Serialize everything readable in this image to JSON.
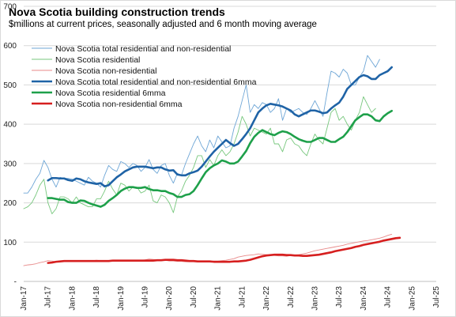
{
  "chart_data": {
    "type": "line",
    "title": "Nova Scotia building construction trends",
    "subtitle": "$millions at current prices, seasonally adjusted and 6 month moving average",
    "ylim": [
      0,
      700
    ],
    "yticks": [
      "-",
      "100",
      "200",
      "300",
      "400",
      "500",
      "600",
      "700"
    ],
    "xticks": [
      "Jan-17",
      "Jul-17",
      "Jan-18",
      "Jul-18",
      "Jan-19",
      "Jul-19",
      "Jan-20",
      "Jul-20",
      "Jan-21",
      "Jul-21",
      "Jan-22",
      "Jul-22",
      "Jan-23",
      "Jul-23",
      "Jan-24",
      "Jul-24",
      "Jan-25",
      "Jul-25"
    ],
    "x_start": "Jan-17",
    "x_end": "Jul-25",
    "legend_position": "top-left",
    "series": [
      {
        "name": "Nova Scotia total residential and non-residential",
        "color": "#6ea6d6",
        "width": 0.9,
        "start": "Jan-17",
        "values": [
          225,
          225,
          240,
          260,
          275,
          308,
          290,
          260,
          240,
          265,
          262,
          262,
          260,
          255,
          250,
          245,
          265,
          255,
          250,
          240,
          270,
          295,
          285,
          280,
          305,
          300,
          290,
          300,
          295,
          280,
          290,
          310,
          285,
          275,
          295,
          300,
          270,
          250,
          275,
          270,
          300,
          325,
          350,
          370,
          345,
          330,
          360,
          340,
          370,
          355,
          340,
          345,
          390,
          420,
          460,
          500,
          430,
          450,
          440,
          455,
          450,
          430,
          440,
          465,
          410,
          440,
          430,
          435,
          440,
          430,
          425,
          440,
          460,
          440,
          420,
          480,
          535,
          530,
          520,
          540,
          530,
          500,
          500,
          520,
          535,
          575,
          560,
          545,
          565
        ]
      },
      {
        "name": "Nova Scotia residential",
        "color": "#77c77d",
        "width": 0.9,
        "start": "Jan-17",
        "values": [
          185,
          190,
          200,
          220,
          245,
          260,
          200,
          172,
          185,
          215,
          215,
          210,
          200,
          215,
          200,
          195,
          190,
          190,
          210,
          210,
          230,
          255,
          235,
          220,
          250,
          245,
          230,
          240,
          240,
          225,
          230,
          245,
          205,
          200,
          220,
          215,
          200,
          175,
          215,
          230,
          255,
          270,
          290,
          320,
          320,
          290,
          310,
          295,
          320,
          335,
          320,
          330,
          350,
          380,
          420,
          400,
          370,
          390,
          385,
          380,
          375,
          390,
          350,
          350,
          330,
          360,
          365,
          350,
          345,
          330,
          320,
          350,
          375,
          360,
          350,
          390,
          430,
          440,
          410,
          420,
          400,
          385,
          410,
          430,
          470,
          450,
          430,
          440
        ]
      },
      {
        "name": "Nova Scotia non-residential",
        "color": "#e88a8a",
        "width": 0.9,
        "start": "Jan-17",
        "values": [
          40,
          42,
          43,
          45,
          48,
          50,
          53,
          52,
          50,
          52,
          53,
          53,
          53,
          52,
          52,
          52,
          53,
          53,
          54,
          53,
          53,
          52,
          52,
          53,
          53,
          52,
          52,
          53,
          53,
          54,
          55,
          57,
          56,
          55,
          55,
          54,
          52,
          52,
          51,
          51,
          50,
          50,
          50,
          50,
          50,
          50,
          51,
          52,
          52,
          53,
          54,
          56,
          58,
          62,
          64,
          66,
          67,
          68,
          70,
          69,
          68,
          67,
          66,
          65,
          65,
          64,
          66,
          67,
          68,
          70,
          72,
          75,
          78,
          80,
          82,
          84,
          86,
          88,
          90,
          92,
          95,
          97,
          99,
          101,
          103,
          104,
          106,
          108,
          110,
          113,
          117,
          120
        ]
      },
      {
        "name": "Nova Scotia total residential and non-residential 6mma",
        "color": "#1f63a6",
        "width": 2.6,
        "start": "Jul-17",
        "values": [
          257,
          263,
          263,
          262,
          262,
          258,
          256,
          262,
          260,
          255,
          252,
          250,
          248,
          250,
          242,
          245,
          255,
          265,
          272,
          280,
          285,
          290,
          292,
          292,
          292,
          290,
          288,
          290,
          290,
          285,
          282,
          283,
          272,
          270,
          270,
          275,
          278,
          282,
          292,
          305,
          318,
          330,
          340,
          350,
          360,
          352,
          345,
          350,
          362,
          375,
          390,
          410,
          430,
          440,
          448,
          452,
          450,
          448,
          445,
          440,
          435,
          425,
          420,
          425,
          430,
          435,
          435,
          432,
          428,
          430,
          440,
          448,
          455,
          470,
          490,
          500,
          510,
          520,
          525,
          522,
          515,
          515,
          525,
          530,
          535,
          545
        ]
      },
      {
        "name": "Nova Scotia residential 6mma",
        "color": "#1ea04a",
        "width": 2.6,
        "start": "Jul-17",
        "values": [
          212,
          212,
          210,
          208,
          208,
          202,
          200,
          200,
          206,
          205,
          200,
          196,
          193,
          190,
          195,
          205,
          212,
          220,
          230,
          236,
          240,
          240,
          238,
          238,
          240,
          235,
          232,
          232,
          230,
          230,
          225,
          222,
          215,
          215,
          220,
          222,
          230,
          245,
          262,
          278,
          288,
          295,
          300,
          308,
          305,
          300,
          300,
          305,
          318,
          332,
          352,
          368,
          378,
          385,
          380,
          375,
          372,
          378,
          382,
          380,
          375,
          368,
          362,
          358,
          355,
          355,
          360,
          365,
          365,
          360,
          355,
          355,
          362,
          368,
          380,
          395,
          410,
          418,
          425,
          425,
          420,
          410,
          408,
          420,
          428,
          434
        ]
      },
      {
        "name": "Nova Scotia non-residential 6mma",
        "color": "#d61f1f",
        "width": 2.6,
        "start": "Jul-17",
        "values": [
          47,
          48,
          50,
          51,
          52,
          52,
          52,
          52,
          52,
          52,
          52,
          52,
          52,
          52,
          52,
          52,
          53,
          53,
          53,
          53,
          53,
          53,
          53,
          53,
          53,
          53,
          53,
          54,
          54,
          55,
          55,
          55,
          54,
          54,
          53,
          52,
          52,
          51,
          51,
          51,
          51,
          50,
          50,
          50,
          50,
          50,
          51,
          51,
          52,
          53,
          55,
          58,
          61,
          64,
          66,
          67,
          68,
          68,
          68,
          67,
          67,
          66,
          66,
          65,
          65,
          66,
          67,
          68,
          70,
          72,
          74,
          77,
          79,
          81,
          83,
          85,
          88,
          90,
          93,
          95,
          97,
          99,
          101,
          104,
          106,
          108,
          110,
          111
        ]
      }
    ]
  }
}
